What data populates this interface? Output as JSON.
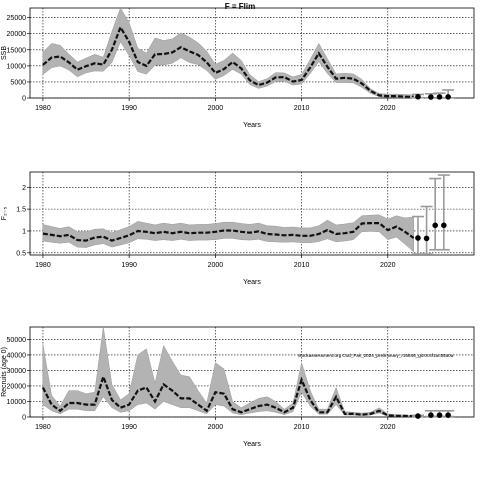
{
  "figure": {
    "title": "F = Flim",
    "watermark": "stockassessment.org Cod_Fak_2024_preliminary_r15846_git.0c4f1ac55a0a"
  },
  "chart_data": [
    {
      "type": "area",
      "title": "F = Flim",
      "xlabel": "Years",
      "ylabel": "SSB",
      "xlim": [
        1978.5,
        2030
      ],
      "ylim": [
        0,
        28000
      ],
      "x_ticks": [
        1980,
        1990,
        2000,
        2010,
        2020
      ],
      "y_ticks": [
        0,
        5000,
        10000,
        15000,
        20000,
        25000
      ],
      "grid": true,
      "series": [
        {
          "x": [
            1980,
            1981,
            1982,
            1983,
            1984,
            1985,
            1986,
            1987,
            1988,
            1989,
            1990,
            1991,
            1992,
            1993,
            1994,
            1995,
            1996,
            1997,
            1998,
            1999,
            2000,
            2001,
            2002,
            2003,
            2004,
            2005,
            2006,
            2007,
            2008,
            2009,
            2010,
            2011,
            2012,
            2013,
            2014,
            2015,
            2016,
            2017,
            2018,
            2019,
            2020,
            2021,
            2022,
            2023
          ],
          "values": [
            10300,
            12600,
            12900,
            11100,
            8800,
            9900,
            10800,
            10400,
            15000,
            22000,
            17500,
            11200,
            10000,
            13600,
            13700,
            14200,
            15800,
            14500,
            13400,
            11100,
            7800,
            9000,
            11200,
            9200,
            5500,
            4000,
            4800,
            6400,
            6500,
            5100,
            5600,
            9500,
            13900,
            9700,
            6000,
            6300,
            6000,
            4500,
            2200,
            800,
            600,
            600,
            400,
            350
          ]
        }
      ],
      "upper": [
        14200,
        17000,
        16400,
        13700,
        11200,
        12400,
        13600,
        12700,
        20700,
        28000,
        23500,
        15500,
        14000,
        18700,
        17900,
        18400,
        20300,
        18900,
        17200,
        14600,
        10500,
        11700,
        14000,
        11700,
        7300,
        5100,
        6000,
        7900,
        7800,
        6600,
        7300,
        12000,
        17000,
        12200,
        7500,
        7700,
        7500,
        5800,
        2900,
        1400,
        1200,
        1200,
        1100,
        1000
      ],
      "lower": [
        7300,
        9400,
        10000,
        8700,
        6600,
        7800,
        8400,
        8300,
        11000,
        17500,
        13200,
        8200,
        7400,
        10200,
        10300,
        10800,
        12500,
        11000,
        10400,
        8600,
        5800,
        7000,
        8900,
        7400,
        4200,
        3000,
        3700,
        5100,
        5200,
        4000,
        4400,
        7600,
        11300,
        7600,
        4800,
        4800,
        4700,
        3300,
        1500,
        400,
        200,
        200,
        100,
        50
      ],
      "projection": {
        "x": [
          2023.5,
          2025,
          2026,
          2027
        ],
        "values": [
          400,
          300,
          350,
          350
        ],
        "upper": [
          1100,
          1300,
          1500,
          2500
        ],
        "lower": [
          100,
          50,
          50,
          50
        ]
      }
    },
    {
      "type": "area",
      "title": "",
      "xlabel": "Years",
      "ylabel": "F₂₋₅",
      "xlim": [
        1978.5,
        2030
      ],
      "ylim": [
        0.45,
        2.35
      ],
      "x_ticks": [
        1980,
        1990,
        2000,
        2010,
        2020
      ],
      "y_ticks": [
        0.5,
        1.0,
        1.5,
        2.0
      ],
      "grid": true,
      "series": [
        {
          "x": [
            1980,
            1981,
            1982,
            1983,
            1984,
            1985,
            1986,
            1987,
            1988,
            1989,
            1990,
            1991,
            1992,
            1993,
            1994,
            1995,
            1996,
            1997,
            1998,
            1999,
            2000,
            2001,
            2002,
            2003,
            2004,
            2005,
            2006,
            2007,
            2008,
            2009,
            2010,
            2011,
            2012,
            2013,
            2014,
            2015,
            2016,
            2017,
            2018,
            2019,
            2020,
            2021,
            2022,
            2023
          ],
          "values": [
            0.94,
            0.91,
            0.88,
            0.91,
            0.79,
            0.78,
            0.85,
            0.87,
            0.78,
            0.84,
            0.9,
            1.0,
            0.98,
            0.95,
            0.98,
            0.95,
            0.98,
            0.95,
            0.96,
            0.96,
            0.98,
            1.01,
            1.01,
            0.98,
            0.96,
            0.99,
            0.93,
            0.92,
            0.9,
            0.91,
            0.89,
            0.89,
            0.93,
            1.02,
            0.93,
            0.95,
            0.98,
            1.17,
            1.18,
            1.18,
            1.02,
            1.1,
            0.98,
            0.84
          ]
        }
      ],
      "upper": [
        1.15,
        1.1,
        1.06,
        1.1,
        0.98,
        0.98,
        1.04,
        1.05,
        0.96,
        1.03,
        1.1,
        1.22,
        1.18,
        1.14,
        1.18,
        1.15,
        1.18,
        1.14,
        1.15,
        1.15,
        1.17,
        1.2,
        1.2,
        1.17,
        1.15,
        1.18,
        1.12,
        1.11,
        1.08,
        1.09,
        1.07,
        1.07,
        1.12,
        1.25,
        1.14,
        1.16,
        1.19,
        1.35,
        1.36,
        1.37,
        1.27,
        1.35,
        1.3,
        1.32
      ],
      "lower": [
        0.77,
        0.74,
        0.72,
        0.74,
        0.63,
        0.62,
        0.68,
        0.71,
        0.63,
        0.68,
        0.73,
        0.82,
        0.81,
        0.78,
        0.8,
        0.78,
        0.81,
        0.78,
        0.79,
        0.79,
        0.8,
        0.83,
        0.83,
        0.8,
        0.79,
        0.81,
        0.76,
        0.75,
        0.74,
        0.75,
        0.73,
        0.73,
        0.76,
        0.82,
        0.75,
        0.77,
        0.8,
        0.98,
        0.99,
        0.98,
        0.8,
        0.86,
        0.7,
        0.52
      ],
      "projection": {
        "x": [
          2023.5,
          2024.5,
          2025.5,
          2026.5
        ],
        "values": [
          0.84,
          0.83,
          1.13,
          1.13
        ],
        "upper": [
          1.33,
          1.56,
          2.2,
          2.28
        ],
        "lower": [
          0.47,
          0.47,
          0.57,
          0.57
        ]
      }
    },
    {
      "type": "area",
      "title": "",
      "xlabel": "Years",
      "ylabel": "Recruits (age 0)",
      "xlim": [
        1978.5,
        2030
      ],
      "ylim": [
        0,
        58000
      ],
      "x_ticks": [
        1980,
        1990,
        2000,
        2010,
        2020
      ],
      "y_ticks": [
        0,
        10000,
        20000,
        30000,
        40000,
        50000
      ],
      "grid": true,
      "series": [
        {
          "x": [
            1980,
            1981,
            1982,
            1983,
            1984,
            1985,
            1986,
            1987,
            1988,
            1989,
            1990,
            1991,
            1992,
            1993,
            1994,
            1995,
            1996,
            1997,
            1998,
            1999,
            2000,
            2001,
            2002,
            2003,
            2004,
            2005,
            2006,
            2007,
            2008,
            2009,
            2010,
            2011,
            2012,
            2013,
            2014,
            2015,
            2016,
            2017,
            2018,
            2019,
            2020,
            2021,
            2022,
            2023
          ],
          "values": [
            19000,
            8000,
            4000,
            9000,
            9000,
            8000,
            8000,
            26000,
            11000,
            6000,
            8000,
            17000,
            19000,
            10000,
            21000,
            17000,
            12000,
            12000,
            8000,
            4000,
            16000,
            15000,
            5000,
            3000,
            5000,
            7000,
            8000,
            6000,
            3000,
            6000,
            24000,
            11000,
            3000,
            3000,
            13000,
            2000,
            2000,
            1500,
            2000,
            4000,
            1000,
            800,
            700,
            600
          ]
        }
      ],
      "upper": [
        47000,
        14000,
        7000,
        17000,
        17000,
        15000,
        16000,
        58000,
        21000,
        11000,
        15000,
        40000,
        44000,
        22000,
        46000,
        36000,
        27000,
        26000,
        17000,
        9000,
        35000,
        31000,
        10000,
        6000,
        9000,
        12000,
        13000,
        10000,
        5000,
        9000,
        35000,
        17000,
        5000,
        5000,
        19000,
        3500,
        3000,
        2500,
        3000,
        6000,
        2000,
        1500,
        1300,
        1100
      ],
      "lower": [
        8000,
        4000,
        2000,
        5000,
        5000,
        4000,
        4000,
        13000,
        6000,
        3000,
        4000,
        8000,
        9000,
        5000,
        10000,
        8000,
        6000,
        6000,
        4000,
        2000,
        8000,
        7000,
        2500,
        1500,
        2500,
        3500,
        4000,
        3000,
        1500,
        3500,
        16000,
        7000,
        1800,
        1800,
        8000,
        1200,
        1200,
        900,
        1200,
        2500,
        500,
        400,
        350,
        300
      ],
      "projection": {
        "x": [
          2023.5,
          2025,
          2026,
          2027
        ],
        "values": [
          600,
          1200,
          1200,
          1200
        ],
        "upper": [
          1100,
          4000,
          4000,
          4000
        ],
        "lower": [
          300,
          300,
          300,
          300
        ]
      }
    }
  ]
}
